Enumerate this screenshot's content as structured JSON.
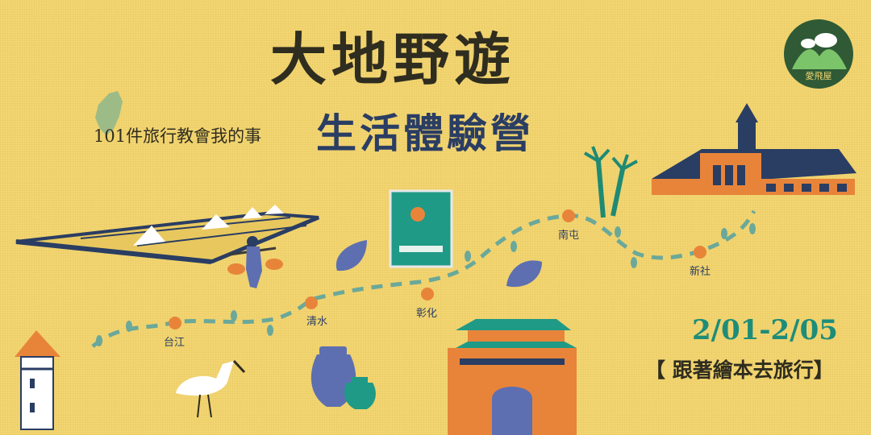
{
  "banner": {
    "title": "大地野遊",
    "subtitle": "生活體驗營",
    "tagline": "101件旅行教會我的事",
    "dates": "2/01-2/05",
    "event": "【 跟著繪本去旅行】",
    "logo_text": "愛飛屋"
  },
  "stops": [
    {
      "name": "台江"
    },
    {
      "name": "清水"
    },
    {
      "name": "彰化"
    },
    {
      "name": "南屯"
    },
    {
      "name": "新社"
    }
  ],
  "colors": {
    "background": "#f3d672",
    "title": "#2f2d1f",
    "subtitle": "#2a3d63",
    "dates": "#1d8d79",
    "stop_dot": "#e8843a",
    "trail": "#6aa89a"
  },
  "icons": [
    "taiwan-map-icon",
    "logo-icon",
    "salt-field",
    "farmer",
    "book-cover",
    "leaf-icon",
    "sugarcane",
    "train-station",
    "watchtower",
    "egret",
    "vases",
    "city-gate",
    "footprint-icon"
  ]
}
